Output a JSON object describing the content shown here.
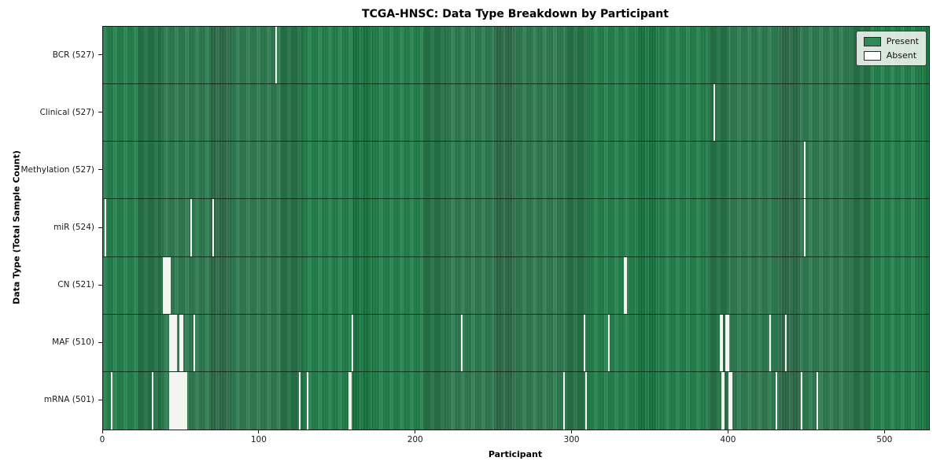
{
  "title": "TCGA-HNSC: Data Type Breakdown by Participant",
  "colors": {
    "present": "#2e8b57",
    "present_edge": "#143f28",
    "absent": "#f4f5f0",
    "axis": "#1a1a1a",
    "legend_bg": "#f8f9f6"
  },
  "chart_data": {
    "type": "heatmap",
    "title": "TCGA-HNSC: Data Type Breakdown by Participant",
    "xlabel": "Participant",
    "ylabel": "Data Type (Total Sample Count)",
    "x_ticks": [
      0,
      100,
      200,
      300,
      400,
      500
    ],
    "x_range": [
      0,
      528
    ],
    "n_participants": 528,
    "grid": false,
    "legend_position": "upper right",
    "legend_items": [
      {
        "label": "Present",
        "color": "#2e8b57"
      },
      {
        "label": "Absent",
        "color": "#ffffff"
      }
    ],
    "rows": [
      {
        "label": "BCR (527)",
        "data_type": "BCR",
        "present_count": 527,
        "absent_count": 1,
        "absent_participants": [
          110
        ]
      },
      {
        "label": "Clinical (527)",
        "data_type": "Clinical",
        "present_count": 527,
        "absent_count": 1,
        "absent_participants": [
          390
        ]
      },
      {
        "label": "Methylation (527)",
        "data_type": "Methylation",
        "present_count": 527,
        "absent_count": 1,
        "absent_participants": [
          448
        ]
      },
      {
        "label": "miR (524)",
        "data_type": "miR",
        "present_count": 524,
        "absent_count": 4,
        "absent_participants": [
          1,
          56,
          70,
          448
        ]
      },
      {
        "label": "CN (521)",
        "data_type": "CN",
        "present_count": 521,
        "absent_count": 7,
        "absent_participants": [
          38,
          39,
          40,
          41,
          42,
          333,
          334
        ]
      },
      {
        "label": "MAF (510)",
        "data_type": "MAF",
        "present_count": 510,
        "absent_count": 18,
        "absent_participants": [
          42,
          43,
          44,
          45,
          46,
          49,
          50,
          58,
          159,
          229,
          307,
          323,
          394,
          395,
          398,
          399,
          426,
          436
        ]
      },
      {
        "label": "mRNA (501)",
        "data_type": "mRNA",
        "present_count": 501,
        "absent_count": 27,
        "absent_participants": [
          5,
          31,
          42,
          43,
          44,
          45,
          46,
          47,
          48,
          49,
          50,
          51,
          52,
          53,
          125,
          130,
          157,
          158,
          294,
          308,
          395,
          396,
          400,
          401,
          430,
          446,
          456
        ]
      }
    ]
  }
}
